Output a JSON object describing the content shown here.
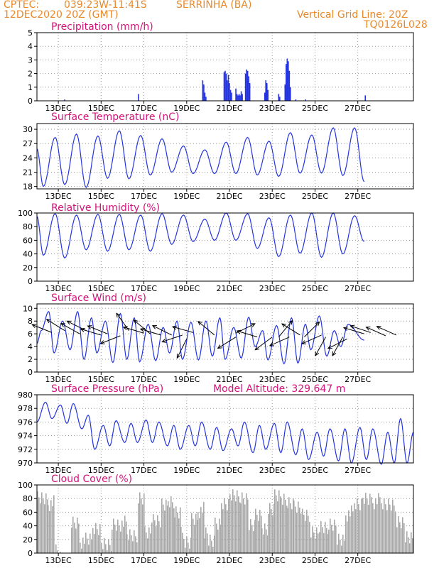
{
  "header": {
    "source": "CPTEC:",
    "coords": "039:23W-11:41S",
    "station": "SERRINHA (BA)",
    "init": "12DEC2020 20Z (GMT)",
    "grid_note": "Vertical Grid Line: 20Z",
    "code": "TQ0126L028"
  },
  "colors": {
    "header": "#e8892b",
    "title": "#d4147a",
    "series": "#2433e0",
    "cloud": "#a9a9a9",
    "axis": "#000000",
    "grid": "#9a9a9a"
  },
  "x_axis": {
    "tick_labels": [
      "13DEC",
      "15DEC",
      "17DEC",
      "19DEC",
      "21DEC",
      "23DEC",
      "25DEC",
      "27DEC"
    ]
  },
  "chart_data": [
    {
      "id": "precip",
      "type": "bar",
      "title": "Precipitation (mm/h)",
      "ylim": [
        0,
        5
      ],
      "yticks": [
        0,
        1,
        2,
        3,
        4,
        5
      ],
      "grid": true,
      "bars": [
        {
          "x": 1.3,
          "y": 0.1
        },
        {
          "x": 4.75,
          "y": 0.5
        },
        {
          "x": 7.75,
          "y": 1.5
        },
        {
          "x": 7.8,
          "y": 1.2
        },
        {
          "x": 7.85,
          "y": 0.6
        },
        {
          "x": 7.9,
          "y": 0.3
        },
        {
          "x": 8.75,
          "y": 2.1
        },
        {
          "x": 8.8,
          "y": 2.2
        },
        {
          "x": 8.85,
          "y": 2.0
        },
        {
          "x": 8.9,
          "y": 1.5
        },
        {
          "x": 8.95,
          "y": 1.9
        },
        {
          "x": 9.0,
          "y": 1.3
        },
        {
          "x": 9.05,
          "y": 0.8
        },
        {
          "x": 9.1,
          "y": 0.6
        },
        {
          "x": 9.3,
          "y": 0.9
        },
        {
          "x": 9.35,
          "y": 0.5
        },
        {
          "x": 9.4,
          "y": 0.4
        },
        {
          "x": 9.45,
          "y": 0.5
        },
        {
          "x": 9.5,
          "y": 0.4
        },
        {
          "x": 9.55,
          "y": 0.7
        },
        {
          "x": 9.6,
          "y": 0.5
        },
        {
          "x": 9.75,
          "y": 2.0
        },
        {
          "x": 9.8,
          "y": 2.3
        },
        {
          "x": 9.85,
          "y": 2.2
        },
        {
          "x": 9.9,
          "y": 1.8
        },
        {
          "x": 9.95,
          "y": 1.3
        },
        {
          "x": 10.65,
          "y": 0.6
        },
        {
          "x": 10.7,
          "y": 1.5
        },
        {
          "x": 10.75,
          "y": 1.3
        },
        {
          "x": 10.8,
          "y": 0.8
        },
        {
          "x": 11.3,
          "y": 0.5
        },
        {
          "x": 11.35,
          "y": 0.3
        },
        {
          "x": 11.6,
          "y": 1.2
        },
        {
          "x": 11.65,
          "y": 2.7
        },
        {
          "x": 11.7,
          "y": 3.1
        },
        {
          "x": 11.75,
          "y": 2.9
        },
        {
          "x": 11.8,
          "y": 2.2
        },
        {
          "x": 11.85,
          "y": 1.0
        },
        {
          "x": 12.1,
          "y": 0.1
        },
        {
          "x": 12.55,
          "y": 0.1
        },
        {
          "x": 15.35,
          "y": 0.4
        }
      ]
    },
    {
      "id": "temp",
      "type": "line",
      "title": "Surface Temperature (nC)",
      "ylim": [
        17.5,
        31.2
      ],
      "yticks": [
        18,
        21,
        24,
        27,
        30
      ],
      "grid": true,
      "amp": [
        25.9,
        18.0,
        28.3,
        18.4,
        29.0,
        17.8,
        28.6,
        19.7,
        29.7,
        19.6,
        28.7,
        20.4,
        28.0,
        21.0,
        26.5,
        20.7,
        25.7,
        20.7,
        27.3,
        20.7,
        28.3,
        20.4,
        27.5,
        20.1,
        29.3,
        20.8,
        28.8,
        20.8,
        30.3,
        20.3,
        30.3,
        19.0
      ],
      "t_min": [
        0,
        0.3,
        0.85,
        1.3,
        1.85,
        2.3,
        2.85,
        3.3,
        3.85,
        4.3,
        4.85,
        5.3,
        5.85,
        6.3,
        6.85,
        7.3,
        7.85,
        8.3,
        8.85,
        9.3,
        9.85,
        10.3,
        10.85,
        11.3,
        11.85,
        12.3,
        12.85,
        13.3,
        13.85,
        14.3,
        14.85,
        15.3
      ]
    },
    {
      "id": "rh",
      "type": "line",
      "title": "Relative Humidity (%)",
      "ylim": [
        0,
        100
      ],
      "yticks": [
        0,
        20,
        40,
        60,
        80,
        100
      ],
      "grid": true,
      "amp": [
        95,
        38,
        99,
        34,
        97,
        46,
        98,
        44,
        98,
        46,
        97,
        44,
        99,
        54,
        97,
        58,
        91,
        60,
        100,
        60,
        99,
        48,
        93,
        36,
        97,
        41,
        100,
        35,
        100,
        40,
        96,
        58
      ],
      "t_min": [
        0,
        0.3,
        0.85,
        1.3,
        1.85,
        2.3,
        2.85,
        3.3,
        3.85,
        4.3,
        4.85,
        5.3,
        5.85,
        6.3,
        6.85,
        7.3,
        7.85,
        8.3,
        8.85,
        9.3,
        9.85,
        10.3,
        10.85,
        11.3,
        11.85,
        12.3,
        12.85,
        13.3,
        13.85,
        14.3,
        14.85,
        15.3
      ]
    },
    {
      "id": "wind",
      "type": "line",
      "title": "Surface Wind (m/s)",
      "ylim": [
        0,
        10.7
      ],
      "yticks": [
        0,
        2,
        4,
        6,
        8,
        10
      ],
      "grid": true,
      "amp": [
        4.5,
        6.5,
        9.5,
        3.0,
        8.0,
        3.5,
        9.5,
        2.0,
        8.5,
        3.0,
        8.0,
        1.5,
        9.2,
        2.0,
        8.5,
        1.6,
        7.5,
        1.8,
        7.0,
        3.0,
        8.0,
        2.0,
        7.8,
        1.9,
        8.0,
        2.5,
        8.5,
        2.0,
        7.0,
        2.2,
        8.6,
        4.0,
        6.5,
        1.9,
        7.3,
        1.3,
        8.5,
        1.4,
        7.5,
        3.5,
        8.8,
        2.5,
        6.5,
        4.0,
        7.5,
        5.0
      ],
      "t_min": [
        0,
        0.2,
        0.55,
        0.8,
        1.2,
        1.55,
        1.9,
        2.2,
        2.55,
        2.8,
        3.2,
        3.55,
        3.9,
        4.2,
        4.55,
        4.8,
        5.2,
        5.55,
        5.9,
        6.2,
        6.55,
        6.8,
        7.2,
        7.55,
        7.9,
        8.2,
        8.55,
        8.8,
        9.2,
        9.55,
        9.9,
        10.2,
        10.55,
        10.8,
        11.2,
        11.55,
        11.9,
        12.2,
        12.55,
        12.8,
        13.2,
        13.55,
        13.9,
        14.2,
        14.55,
        15.3
      ],
      "arrows": [
        {
          "x": 0.7,
          "y": 6.2,
          "dx": -1.0,
          "dy": 0.4
        },
        {
          "x": 1.3,
          "y": 6.5,
          "dx": -0.8,
          "dy": 0.5
        },
        {
          "x": 2.0,
          "y": 6.0,
          "dx": -0.9,
          "dy": 0.5
        },
        {
          "x": 2.3,
          "y": 6.5,
          "dx": -0.8,
          "dy": 0.4
        },
        {
          "x": 3.0,
          "y": 5.8,
          "dx": -1.0,
          "dy": 0.3
        },
        {
          "x": 3.3,
          "y": 6.0,
          "dx": -1.0,
          "dy": 0.4
        },
        {
          "x": 3.9,
          "y": 5.7,
          "dx": -1.0,
          "dy": -0.4
        },
        {
          "x": 4.3,
          "y": 6.5,
          "dx": -0.5,
          "dy": 0.7
        },
        {
          "x": 5.0,
          "y": 6.1,
          "dx": -1.0,
          "dy": 0.3
        },
        {
          "x": 5.3,
          "y": 6.0,
          "dx": -0.6,
          "dy": 0.5
        },
        {
          "x": 5.8,
          "y": 5.8,
          "dx": -1.0,
          "dy": 0.3
        },
        {
          "x": 6.3,
          "y": 5.8,
          "dx": -0.8,
          "dy": 0.4
        },
        {
          "x": 6.8,
          "y": 5.8,
          "dx": -0.9,
          "dy": -0.3
        },
        {
          "x": 7.3,
          "y": 6.2,
          "dx": -0.7,
          "dy": 0.2
        },
        {
          "x": 7.0,
          "y": 5.2,
          "dx": -0.4,
          "dy": -0.8
        },
        {
          "x": 8.3,
          "y": 5.8,
          "dx": -0.6,
          "dy": 0.5
        },
        {
          "x": 9.3,
          "y": 5.5,
          "dx": -0.8,
          "dy": -0.5
        },
        {
          "x": 9.3,
          "y": 6.1,
          "dx": 0.8,
          "dy": 0.4
        },
        {
          "x": 10.3,
          "y": 5.5,
          "dx": -1.0,
          "dy": 0.3
        },
        {
          "x": 11.0,
          "y": 5.5,
          "dx": -0.8,
          "dy": -0.6
        },
        {
          "x": 11.3,
          "y": 5.5,
          "dx": 0.5,
          "dy": 0.6
        },
        {
          "x": 11.8,
          "y": 5.5,
          "dx": -0.9,
          "dy": -0.4
        },
        {
          "x": 12.3,
          "y": 5.8,
          "dx": -0.8,
          "dy": 0.5
        },
        {
          "x": 12.5,
          "y": 5.5,
          "dx": 0.6,
          "dy": 0.6
        },
        {
          "x": 13.3,
          "y": 5.8,
          "dx": -0.9,
          "dy": -0.4
        },
        {
          "x": 13.5,
          "y": 5.5,
          "dx": -0.5,
          "dy": -0.9
        },
        {
          "x": 14.3,
          "y": 5.5,
          "dx": -0.5,
          "dy": -0.9
        },
        {
          "x": 14.5,
          "y": 5.2,
          "dx": -0.8,
          "dy": -0.4
        },
        {
          "x": 15.3,
          "y": 6.0,
          "dx": -1.0,
          "dy": 0.3
        },
        {
          "x": 15.6,
          "y": 6.2,
          "dx": -0.9,
          "dy": 0.3
        },
        {
          "x": 16.3,
          "y": 5.7,
          "dx": -0.9,
          "dy": 0.4
        },
        {
          "x": 16.8,
          "y": 5.8,
          "dx": -0.9,
          "dy": 0.4
        }
      ]
    },
    {
      "id": "press",
      "type": "line",
      "title": "Surface Pressure (hPa)",
      "subtitle": "Model Altitude: 329.647 m",
      "ylim": [
        970,
        980
      ],
      "yticks": [
        970,
        972,
        974,
        976,
        978,
        980
      ],
      "grid": true,
      "amp": [
        976.0,
        978.9,
        976.5,
        978.5,
        975.8,
        978.7,
        975.0,
        977.0,
        972.0,
        975.5,
        972.5,
        976.2,
        973.0,
        975.8,
        973.0,
        976.3,
        973.0,
        976.0,
        972.5,
        975.5,
        972.0,
        975.5,
        972.5,
        976.0,
        972.0,
        975.2,
        971.8,
        975.0,
        972.5,
        976.0,
        971.5,
        975.5,
        972.0,
        975.8,
        971.5,
        976.0,
        971.2,
        975.0,
        970.5,
        974.5,
        971.0,
        975.0,
        970.3,
        975.0,
        970.0,
        975.2,
        970.5,
        975.0,
        969.8,
        974.5,
        970.0,
        976.5,
        970.0,
        974.5
      ],
      "t_min": [
        0,
        0.4,
        0.7,
        1.1,
        1.4,
        1.7,
        2.1,
        2.4,
        2.7,
        3.1,
        3.4,
        3.7,
        4.1,
        4.4,
        4.7,
        5.1,
        5.4,
        5.7,
        6.1,
        6.4,
        6.7,
        7.1,
        7.4,
        7.7,
        8.1,
        8.4,
        8.7,
        9.1,
        9.4,
        9.7,
        10.1,
        10.4,
        10.7,
        11.1,
        11.4,
        11.7,
        12.1,
        12.4,
        12.7,
        13.1,
        13.4,
        13.7,
        14.1,
        14.4,
        14.7,
        15.1,
        15.4,
        15.7,
        16.1,
        16.4,
        16.7,
        17.0,
        17.3,
        17.6
      ]
    },
    {
      "id": "cloud",
      "type": "area",
      "title": "Cloud Cover (%)",
      "ylim": [
        0,
        100
      ],
      "yticks": [
        0,
        20,
        40,
        60,
        80,
        100
      ],
      "grid": true,
      "segments": [
        {
          "x0": 0.0,
          "x1": 0.5,
          "v": 95
        },
        {
          "x0": 0.5,
          "x1": 0.8,
          "v": 85
        },
        {
          "x0": 0.8,
          "x1": 1.0,
          "v": 20
        },
        {
          "x0": 1.0,
          "x1": 1.6,
          "v": 5
        },
        {
          "x0": 1.6,
          "x1": 2.0,
          "v": 55
        },
        {
          "x0": 2.0,
          "x1": 2.6,
          "v": 30
        },
        {
          "x0": 2.6,
          "x1": 3.0,
          "v": 50
        },
        {
          "x0": 3.0,
          "x1": 3.5,
          "v": 25
        },
        {
          "x0": 3.5,
          "x1": 4.2,
          "v": 55
        },
        {
          "x0": 4.2,
          "x1": 4.7,
          "v": 35
        },
        {
          "x0": 4.7,
          "x1": 5.0,
          "v": 95
        },
        {
          "x0": 5.0,
          "x1": 5.4,
          "v": 45
        },
        {
          "x0": 5.4,
          "x1": 5.8,
          "v": 60
        },
        {
          "x0": 5.8,
          "x1": 6.1,
          "v": 80
        },
        {
          "x0": 6.1,
          "x1": 6.4,
          "v": 85
        },
        {
          "x0": 6.4,
          "x1": 6.7,
          "v": 70
        },
        {
          "x0": 6.7,
          "x1": 6.9,
          "v": 40
        },
        {
          "x0": 6.9,
          "x1": 7.2,
          "v": 30
        },
        {
          "x0": 7.2,
          "x1": 7.5,
          "v": 65
        },
        {
          "x0": 7.5,
          "x1": 7.8,
          "v": 75
        },
        {
          "x0": 7.8,
          "x1": 8.0,
          "v": 45
        },
        {
          "x0": 8.0,
          "x1": 8.3,
          "v": 30
        },
        {
          "x0": 8.3,
          "x1": 8.6,
          "v": 55
        },
        {
          "x0": 8.6,
          "x1": 9.0,
          "v": 85
        },
        {
          "x0": 9.0,
          "x1": 9.5,
          "v": 95
        },
        {
          "x0": 9.5,
          "x1": 9.9,
          "v": 92
        },
        {
          "x0": 9.9,
          "x1": 10.2,
          "v": 50
        },
        {
          "x0": 10.2,
          "x1": 10.5,
          "v": 65
        },
        {
          "x0": 10.5,
          "x1": 10.8,
          "v": 45
        },
        {
          "x0": 10.8,
          "x1": 11.1,
          "v": 75
        },
        {
          "x0": 11.1,
          "x1": 11.4,
          "v": 95
        },
        {
          "x0": 11.4,
          "x1": 11.7,
          "v": 90
        },
        {
          "x0": 11.7,
          "x1": 12.0,
          "v": 85
        },
        {
          "x0": 12.0,
          "x1": 12.4,
          "v": 80
        },
        {
          "x0": 12.4,
          "x1": 12.8,
          "v": 65
        },
        {
          "x0": 12.8,
          "x1": 13.2,
          "v": 45
        },
        {
          "x0": 13.2,
          "x1": 13.6,
          "v": 50
        },
        {
          "x0": 13.6,
          "x1": 14.0,
          "v": 55
        },
        {
          "x0": 14.0,
          "x1": 14.4,
          "v": 30
        },
        {
          "x0": 14.4,
          "x1": 14.8,
          "v": 70
        },
        {
          "x0": 14.8,
          "x1": 15.2,
          "v": 85
        },
        {
          "x0": 15.2,
          "x1": 15.6,
          "v": 90
        },
        {
          "x0": 15.6,
          "x1": 16.0,
          "v": 88
        },
        {
          "x0": 16.0,
          "x1": 16.4,
          "v": 85
        },
        {
          "x0": 16.4,
          "x1": 16.8,
          "v": 80
        },
        {
          "x0": 16.8,
          "x1": 17.2,
          "v": 60
        },
        {
          "x0": 17.2,
          "x1": 17.6,
          "v": 35
        }
      ]
    }
  ]
}
